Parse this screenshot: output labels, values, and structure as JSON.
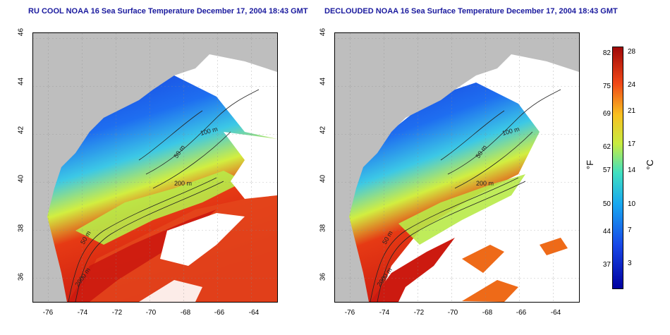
{
  "titles": {
    "left": "RU COOL NOAA 16 Sea Surface Temperature December 17, 2004 18:43 GMT",
    "right": "DECLOUDED NOAA 16 Sea Surface Temperature December 17, 2004 18:43 GMT"
  },
  "colors": {
    "title_blue": "#1a1a9e",
    "land": "#bebebe",
    "cloud": "#ffffff"
  },
  "axes": {
    "lat_ticks": [
      "46",
      "44",
      "42",
      "40",
      "38",
      "36"
    ],
    "lon_ticks": [
      "-76",
      "-74",
      "-72",
      "-70",
      "-68",
      "-66",
      "-64"
    ]
  },
  "contours": {
    "labels": [
      "100 m",
      "50 m",
      "200 m",
      "2000 m"
    ]
  },
  "colorbar": {
    "unit_f": "°F",
    "unit_c": "°C",
    "f_ticks": [
      "82",
      "75",
      "69",
      "62",
      "57",
      "50",
      "44",
      "37"
    ],
    "c_ticks": [
      "28",
      "24",
      "21",
      "17",
      "14",
      "10",
      "7",
      "3"
    ]
  }
}
